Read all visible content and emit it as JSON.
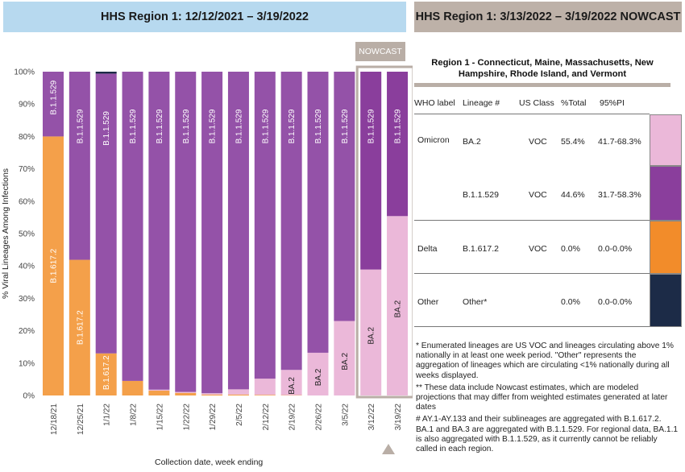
{
  "header_left": "HHS Region 1: 12/12/2021 – 3/19/2022",
  "header_right": "HHS Region 1: 3/13/2022 – 3/19/2022 NOWCAST",
  "nowcast_label": "NOWCAST",
  "colors": {
    "BA.2": "#ebb8d9",
    "B.1.1.529": "#9452a8",
    "B.1.1.529_nowcast": "#8a3e9c",
    "B.1.617.2": "#f4a04a",
    "Other": "#1c2b47",
    "nowcast_frame": "#b9aea6"
  },
  "chart_data": {
    "type": "bar",
    "stacked": true,
    "title": "",
    "xlabel": "Collection date, week ending",
    "ylabel": "% Viral Lineages Among Infections",
    "ylim": [
      0,
      100
    ],
    "yticks": [
      "0%",
      "10%",
      "20%",
      "30%",
      "40%",
      "50%",
      "60%",
      "70%",
      "80%",
      "90%",
      "100%"
    ],
    "categories": [
      "12/18/21",
      "12/25/21",
      "1/1/22",
      "1/8/22",
      "1/15/22",
      "1/22/22",
      "1/29/22",
      "2/5/22",
      "2/12/22",
      "2/19/22",
      "2/26/22",
      "3/5/22",
      "3/12/22",
      "3/19/22"
    ],
    "nowcast_categories": [
      "3/12/22",
      "3/19/22"
    ],
    "series": [
      {
        "name": "B.1.617.2",
        "values": [
          80.0,
          41.9,
          13.0,
          4.5,
          1.5,
          0.8,
          0.3,
          0.3,
          0.2,
          0.1,
          0.0,
          0.0,
          0.0,
          0.0
        ]
      },
      {
        "name": "BA.2",
        "values": [
          0.0,
          0.0,
          0.0,
          0.0,
          0.3,
          0.3,
          0.4,
          1.6,
          5.0,
          7.8,
          13.2,
          23.0,
          38.9,
          55.4
        ]
      },
      {
        "name": "B.1.1.529",
        "values": [
          20.0,
          58.1,
          86.4,
          95.5,
          98.2,
          98.9,
          99.3,
          98.1,
          94.8,
          92.1,
          86.8,
          77.0,
          61.1,
          44.6
        ]
      },
      {
        "name": "Other",
        "values": [
          0.0,
          0.0,
          0.6,
          0.0,
          0.0,
          0.0,
          0.0,
          0.0,
          0.0,
          0.0,
          0.0,
          0.0,
          0.0,
          0.0
        ]
      }
    ],
    "bar_labels": [
      {
        "category": "12/18/21",
        "series": "B.1.1.529",
        "text": "B.1.1.529"
      },
      {
        "category": "12/18/21",
        "series": "B.1.617.2",
        "text": "B.1.617.2"
      },
      {
        "category": "12/25/21",
        "series": "B.1.1.529",
        "text": "B.1.1.529"
      },
      {
        "category": "12/25/21",
        "series": "B.1.617.2",
        "text": "B.1.617.2"
      },
      {
        "category": "1/1/22",
        "series": "B.1.1.529",
        "text": "B.1.1.529"
      },
      {
        "category": "1/1/22",
        "series": "B.1.617.2",
        "text": "B.1.617.2"
      },
      {
        "category": "1/8/22",
        "series": "B.1.1.529",
        "text": "B.1.1.529"
      },
      {
        "category": "1/15/22",
        "series": "B.1.1.529",
        "text": "B.1.1.529"
      },
      {
        "category": "1/22/22",
        "series": "B.1.1.529",
        "text": "B.1.1.529"
      },
      {
        "category": "1/29/22",
        "series": "B.1.1.529",
        "text": "B.1.1.529"
      },
      {
        "category": "2/5/22",
        "series": "B.1.1.529",
        "text": "B.1.1.529"
      },
      {
        "category": "2/12/22",
        "series": "B.1.1.529",
        "text": "B.1.1.529"
      },
      {
        "category": "2/19/22",
        "series": "B.1.1.529",
        "text": "B.1.1.529"
      },
      {
        "category": "2/19/22",
        "series": "BA.2",
        "text": "BA.2"
      },
      {
        "category": "2/26/22",
        "series": "B.1.1.529",
        "text": "B.1.1.529"
      },
      {
        "category": "2/26/22",
        "series": "BA.2",
        "text": "BA.2"
      },
      {
        "category": "3/5/22",
        "series": "B.1.1.529",
        "text": "B.1.1.529"
      },
      {
        "category": "3/5/22",
        "series": "BA.2",
        "text": "BA.2"
      },
      {
        "category": "3/12/22",
        "series": "B.1.1.529",
        "text": "B.1.1.529"
      },
      {
        "category": "3/12/22",
        "series": "BA.2",
        "text": "BA.2"
      },
      {
        "category": "3/19/22",
        "series": "B.1.1.529",
        "text": "B.1.1.529"
      },
      {
        "category": "3/19/22",
        "series": "BA.2",
        "text": "BA.2"
      }
    ],
    "grid": false,
    "legend": "none"
  },
  "region_title": "Region 1 - Connecticut, Maine, Massachusetts, New Hampshire, Rhode Island, and Vermont",
  "table": {
    "headers": [
      "WHO label",
      "Lineage #",
      "US Class",
      "%Total",
      "95%PI"
    ],
    "rows": [
      {
        "who": "Omicron",
        "lineage": "BA.2",
        "class": "VOC",
        "total": "55.4%",
        "pi": "41.7-68.3%",
        "color": "#ebb8d9"
      },
      {
        "who": "",
        "lineage": "B.1.1.529",
        "class": "VOC",
        "total": "44.6%",
        "pi": "31.7-58.3%",
        "color": "#8a3e9c"
      },
      {
        "who": "Delta",
        "lineage": "B.1.617.2",
        "class": "VOC",
        "total": "0.0%",
        "pi": "0.0-0.0%",
        "color": "#f28c2a"
      },
      {
        "who": "Other",
        "lineage": "Other*",
        "class": "",
        "total": "0.0%",
        "pi": "0.0-0.0%",
        "color": "#1c2b47"
      }
    ]
  },
  "notes": [
    "*      Enumerated lineages are US VOC and lineages circulating above 1% nationally in at least one week period. \"Other\" represents the aggregation of lineages which are circulating <1% nationally during all weeks displayed.",
    "**    These data include Nowcast estimates, which are modeled projections that may differ from weighted estimates generated at later dates",
    "#     AY.1-AY.133 and their sublineages are aggregated with B.1.617.2. BA.1 and BA.3 are aggregated with B.1.1.529. For regional data, BA.1.1 is also aggregated with B.1.1.529, as it currently cannot be reliably called in each region."
  ]
}
